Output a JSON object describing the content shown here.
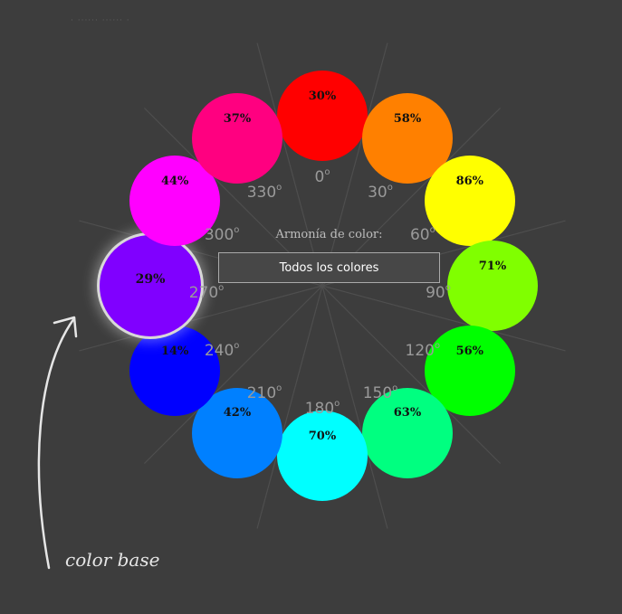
{
  "header": {
    "text": "· ······ ······ ·"
  },
  "harmony": {
    "label": "Armonía de color:",
    "value": "Todos los colores"
  },
  "swatches": [
    {
      "hue": 0,
      "color": "#ff0000",
      "percent": "30%"
    },
    {
      "hue": 30,
      "color": "#ff8000",
      "percent": "58%"
    },
    {
      "hue": 60,
      "color": "#ffff00",
      "percent": "86%"
    },
    {
      "hue": 90,
      "color": "#80ff00",
      "percent": "71%"
    },
    {
      "hue": 120,
      "color": "#00ff00",
      "percent": "56%"
    },
    {
      "hue": 150,
      "color": "#00ff80",
      "percent": "63%"
    },
    {
      "hue": 180,
      "color": "#00ffff",
      "percent": "70%"
    },
    {
      "hue": 210,
      "color": "#0080ff",
      "percent": "42%"
    },
    {
      "hue": 240,
      "color": "#0000ff",
      "percent": "14%"
    },
    {
      "hue": 270,
      "color": "#8000ff",
      "percent": "29%",
      "selected": true
    },
    {
      "hue": 300,
      "color": "#ff00ff",
      "percent": "44%"
    },
    {
      "hue": 330,
      "color": "#ff0080",
      "percent": "37%"
    }
  ],
  "degree_labels": [
    "0",
    "30",
    "60",
    "90",
    "120",
    "150",
    "180",
    "210",
    "240",
    "270",
    "300",
    "330"
  ],
  "degree_symbol": "o",
  "annotation": {
    "text": "color base",
    "arrow_color": "#e6e6e6"
  }
}
